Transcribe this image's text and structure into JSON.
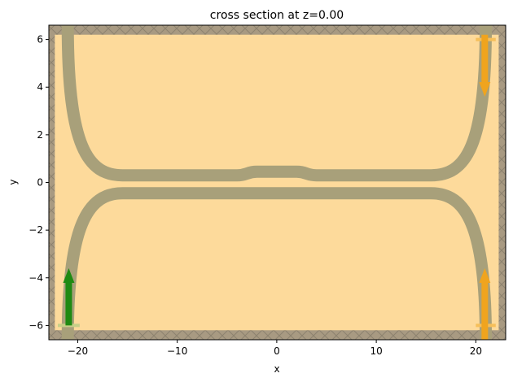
{
  "chart_data": {
    "type": "diagram",
    "title": "cross section at z=0.00",
    "xlabel": "x",
    "ylabel": "y",
    "xlim": [
      -22.9,
      23.0
    ],
    "ylim": [
      -6.6,
      6.6
    ],
    "xticks": [
      -20,
      -10,
      0,
      10,
      20
    ],
    "xtick_labels": [
      "−20",
      "−10",
      "0",
      "10",
      "20"
    ],
    "yticks": [
      -6,
      -4,
      -2,
      0,
      2,
      4,
      6
    ],
    "ytick_labels": [
      "−6",
      "−4",
      "−2",
      "0",
      "2",
      "4",
      "6"
    ],
    "simulation_region": {
      "x": [
        -22.3,
        22.3
      ],
      "y": [
        -6.2,
        6.2
      ]
    },
    "pml_thickness": 0.85,
    "waveguides": [
      {
        "name": "upper",
        "center_y": 0.3,
        "gap_center_y": 0.45,
        "straight_x": [
          -15.5,
          15.5
        ],
        "coupler_x": [
          -3,
          3
        ],
        "end_x": [
          -21,
          21
        ],
        "end_y": 6.6
      },
      {
        "name": "lower",
        "center_y": -0.45,
        "gap_center_y": -0.45,
        "straight_x": [
          -15.5,
          15.5
        ],
        "end_x": [
          -21,
          21
        ],
        "end_y": -6.6
      }
    ],
    "sources": [
      {
        "x": -20.9,
        "y_start": -6.0,
        "y_end": -3.6,
        "direction": "up",
        "plane_x": [
          -22,
          -19.8
        ]
      }
    ],
    "monitors": [
      {
        "x": 20.9,
        "y_start": 6.2,
        "y_end": 3.6,
        "direction": "down",
        "plane_x": [
          20,
          22
        ]
      },
      {
        "x": 20.9,
        "y_start": -6.6,
        "y_end": -3.6,
        "direction": "up",
        "plane_x": [
          20,
          22
        ]
      }
    ],
    "colors": {
      "background": "#fdda9b",
      "waveguide": "#a8a07a",
      "pml": "#a89a82",
      "source": "#1f8a12",
      "monitor": "#f0a41e",
      "plane_source": "#c7cf88",
      "plane_monitor": "#f6bf5a"
    },
    "grid": false,
    "legend": "none"
  }
}
